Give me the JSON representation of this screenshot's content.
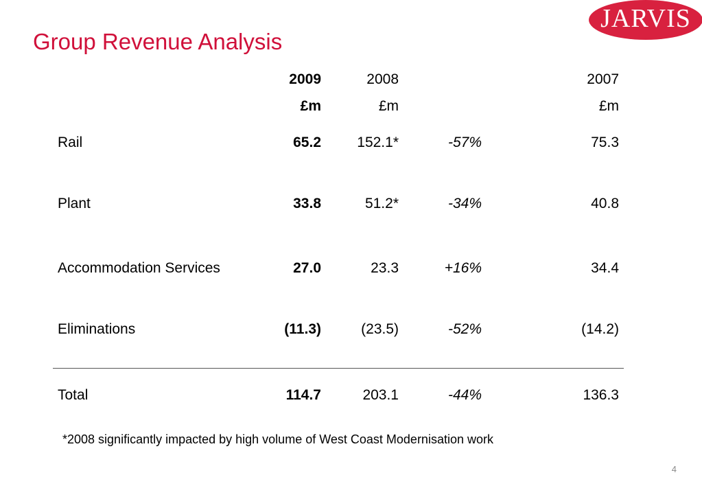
{
  "slide": {
    "title": "Group Revenue Analysis",
    "page_number": "4",
    "footnote": "*2008 significantly impacted by high volume of West Coast Modernisation work"
  },
  "logo": {
    "text": "JARVIS",
    "color": "#d8213f"
  },
  "colors": {
    "title": "#d0103a"
  },
  "table": {
    "headers": {
      "y2009": "2009",
      "y2009_unit": "£m",
      "y2008": "2008",
      "y2008_unit": "£m",
      "y2007": "2007",
      "y2007_unit": "£m"
    },
    "rows": [
      {
        "label": "Rail",
        "v2009": "65.2",
        "v2008": "152.1*",
        "change": "-57%",
        "v2007": "75.3"
      },
      {
        "label": "Plant",
        "v2009": "33.8",
        "v2008": "51.2*",
        "change": "-34%",
        "v2007": "40.8"
      },
      {
        "label": "Accommodation Services",
        "v2009": "27.0",
        "v2008": "23.3",
        "change": "+16%",
        "v2007": "34.4"
      },
      {
        "label": "Eliminations",
        "v2009": "(11.3)",
        "v2008": "(23.5)",
        "change": "-52%",
        "v2007": "(14.2)"
      }
    ],
    "total": {
      "label": "Total",
      "v2009": "114.7",
      "v2008": "203.1",
      "change": "-44%",
      "v2007": "136.3"
    }
  }
}
